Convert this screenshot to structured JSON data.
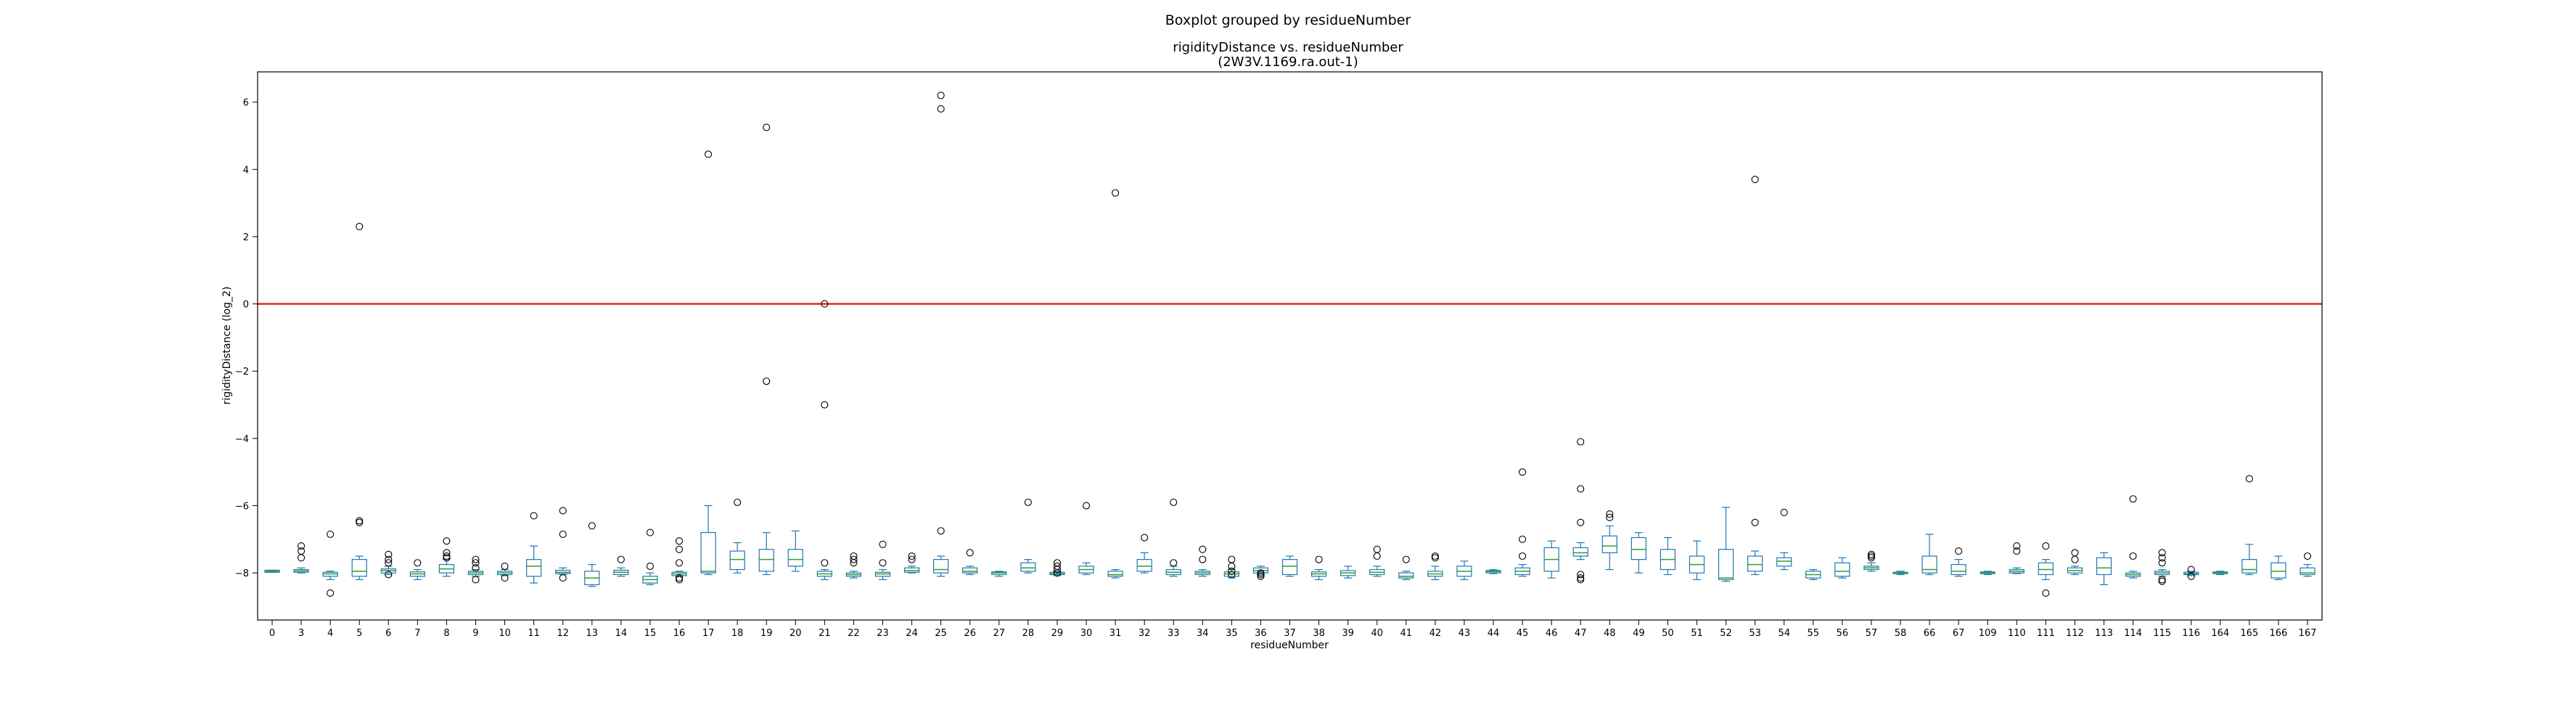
{
  "chart_data": {
    "type": "box",
    "suptitle": "Boxplot grouped by residueNumber",
    "title": "rigidityDistance vs. residueNumber",
    "subtitle": "(2W3V.1169.ra.out-1)",
    "xlabel": "residueNumber",
    "ylabel": "rigidityDistance (log_2)",
    "ylim": [
      -9.4,
      6.9
    ],
    "yticks": [
      -8,
      -6,
      -4,
      -2,
      0,
      2,
      4,
      6
    ],
    "reference_line": {
      "y": 0,
      "color": "#e8351a"
    },
    "box_color": "#1f77b4",
    "median_color": "#2ca02c",
    "categories": [
      "0",
      "3",
      "4",
      "5",
      "6",
      "7",
      "8",
      "9",
      "10",
      "11",
      "12",
      "13",
      "14",
      "15",
      "16",
      "17",
      "18",
      "19",
      "20",
      "21",
      "22",
      "23",
      "24",
      "25",
      "26",
      "27",
      "28",
      "29",
      "30",
      "31",
      "32",
      "33",
      "34",
      "35",
      "36",
      "37",
      "38",
      "39",
      "40",
      "41",
      "42",
      "43",
      "44",
      "45",
      "46",
      "47",
      "48",
      "49",
      "50",
      "51",
      "52",
      "53",
      "54",
      "55",
      "56",
      "57",
      "58",
      "66",
      "67",
      "109",
      "110",
      "111",
      "112",
      "113",
      "114",
      "115",
      "116",
      "164",
      "165",
      "166",
      "167"
    ],
    "boxes": [
      {
        "q1": -7.98,
        "med": -7.95,
        "q3": -7.92,
        "lo": -7.98,
        "hi": -7.92,
        "out": []
      },
      {
        "q1": -7.98,
        "med": -7.94,
        "q3": -7.9,
        "lo": -8.0,
        "hi": -7.85,
        "out": [
          -7.2,
          -7.35,
          -7.55
        ]
      },
      {
        "q1": -8.1,
        "med": -8.03,
        "q3": -7.98,
        "lo": -8.2,
        "hi": -7.95,
        "out": [
          -6.85,
          -8.6
        ]
      },
      {
        "q1": -8.1,
        "med": -7.95,
        "q3": -7.6,
        "lo": -8.2,
        "hi": -7.5,
        "out": [
          2.3,
          -6.45,
          -6.5
        ]
      },
      {
        "q1": -8.0,
        "med": -7.93,
        "q3": -7.88,
        "lo": -8.05,
        "hi": -7.8,
        "out": [
          -7.45,
          -7.6,
          -7.7,
          -8.05
        ]
      },
      {
        "q1": -8.1,
        "med": -8.03,
        "q3": -7.97,
        "lo": -8.2,
        "hi": -7.9,
        "out": [
          -7.7
        ]
      },
      {
        "q1": -8.0,
        "med": -7.88,
        "q3": -7.75,
        "lo": -8.1,
        "hi": -7.6,
        "out": [
          -7.05,
          -7.4,
          -7.5,
          -7.55
        ]
      },
      {
        "q1": -8.05,
        "med": -8.0,
        "q3": -7.95,
        "lo": -8.1,
        "hi": -7.9,
        "out": [
          -7.6,
          -7.7,
          -7.85,
          -8.2
        ]
      },
      {
        "q1": -8.05,
        "med": -8.0,
        "q3": -7.95,
        "lo": -8.08,
        "hi": -7.9,
        "out": [
          -7.8,
          -8.15
        ]
      },
      {
        "q1": -8.1,
        "med": -7.8,
        "q3": -7.6,
        "lo": -8.3,
        "hi": -7.2,
        "out": [
          -6.3
        ]
      },
      {
        "q1": -8.02,
        "med": -7.98,
        "q3": -7.92,
        "lo": -8.05,
        "hi": -7.85,
        "out": [
          -6.15,
          -6.85,
          -8.15
        ]
      },
      {
        "q1": -8.35,
        "med": -8.15,
        "q3": -7.95,
        "lo": -8.4,
        "hi": -7.75,
        "out": [
          -6.6
        ]
      },
      {
        "q1": -8.05,
        "med": -7.98,
        "q3": -7.92,
        "lo": -8.1,
        "hi": -7.85,
        "out": [
          -7.6
        ]
      },
      {
        "q1": -8.3,
        "med": -8.2,
        "q3": -8.1,
        "lo": -8.35,
        "hi": -8.0,
        "out": [
          -6.8,
          -7.8
        ]
      },
      {
        "q1": -8.08,
        "med": -8.03,
        "q3": -7.98,
        "lo": -8.1,
        "hi": -7.95,
        "out": [
          -7.05,
          -7.3,
          -7.7,
          -8.15,
          -8.2
        ]
      },
      {
        "q1": -8.0,
        "med": -7.95,
        "q3": -6.8,
        "lo": -8.05,
        "hi": -6.0,
        "out": [
          4.45
        ]
      },
      {
        "q1": -7.9,
        "med": -7.6,
        "q3": -7.35,
        "lo": -8.0,
        "hi": -7.1,
        "out": [
          -5.9
        ]
      },
      {
        "q1": -7.95,
        "med": -7.6,
        "q3": -7.3,
        "lo": -8.05,
        "hi": -6.8,
        "out": [
          5.25,
          -2.3
        ]
      },
      {
        "q1": -7.8,
        "med": -7.6,
        "q3": -7.3,
        "lo": -7.95,
        "hi": -6.75,
        "out": []
      },
      {
        "q1": -8.1,
        "med": -8.03,
        "q3": -7.95,
        "lo": -8.2,
        "hi": -7.9,
        "out": [
          0.0,
          -3.0,
          -7.7
        ]
      },
      {
        "q1": -8.1,
        "med": -8.05,
        "q3": -8.0,
        "lo": -8.15,
        "hi": -7.95,
        "out": [
          -7.5,
          -7.6,
          -7.7
        ]
      },
      {
        "q1": -8.1,
        "med": -8.03,
        "q3": -7.98,
        "lo": -8.2,
        "hi": -7.9,
        "out": [
          -7.15,
          -7.7
        ]
      },
      {
        "q1": -7.98,
        "med": -7.93,
        "q3": -7.85,
        "lo": -8.0,
        "hi": -7.8,
        "out": [
          -7.5,
          -7.6
        ]
      },
      {
        "q1": -8.0,
        "med": -7.9,
        "q3": -7.6,
        "lo": -8.1,
        "hi": -7.5,
        "out": [
          6.2,
          5.8,
          -6.75
        ]
      },
      {
        "q1": -8.0,
        "med": -7.95,
        "q3": -7.85,
        "lo": -8.05,
        "hi": -7.8,
        "out": [
          -7.4
        ]
      },
      {
        "q1": -8.05,
        "med": -8.0,
        "q3": -7.97,
        "lo": -8.1,
        "hi": -7.95,
        "out": []
      },
      {
        "q1": -7.95,
        "med": -7.85,
        "q3": -7.7,
        "lo": -8.0,
        "hi": -7.6,
        "out": [
          -5.9
        ]
      },
      {
        "q1": -8.05,
        "med": -8.02,
        "q3": -7.98,
        "lo": -8.08,
        "hi": -7.95,
        "out": [
          -7.7,
          -7.8,
          -7.9,
          -8.0
        ]
      },
      {
        "q1": -8.0,
        "med": -7.9,
        "q3": -7.8,
        "lo": -8.05,
        "hi": -7.7,
        "out": [
          -6.0
        ]
      },
      {
        "q1": -8.1,
        "med": -8.05,
        "q3": -7.95,
        "lo": -8.15,
        "hi": -7.9,
        "out": [
          3.3
        ]
      },
      {
        "q1": -7.95,
        "med": -7.8,
        "q3": -7.6,
        "lo": -8.0,
        "hi": -7.4,
        "out": [
          -6.95
        ]
      },
      {
        "q1": -8.05,
        "med": -7.98,
        "q3": -7.9,
        "lo": -8.1,
        "hi": -7.8,
        "out": [
          -5.9,
          -7.7
        ]
      },
      {
        "q1": -8.05,
        "med": -8.0,
        "q3": -7.95,
        "lo": -8.1,
        "hi": -7.9,
        "out": [
          -7.3,
          -7.6
        ]
      },
      {
        "q1": -8.1,
        "med": -8.03,
        "q3": -7.97,
        "lo": -8.15,
        "hi": -7.9,
        "out": [
          -7.6,
          -7.8,
          -7.95,
          -8.05
        ]
      },
      {
        "q1": -8.0,
        "med": -7.93,
        "q3": -7.85,
        "lo": -8.05,
        "hi": -7.8,
        "out": [
          -8.0,
          -8.05,
          -8.1
        ]
      },
      {
        "q1": -8.05,
        "med": -7.8,
        "q3": -7.6,
        "lo": -8.1,
        "hi": -7.5,
        "out": []
      },
      {
        "q1": -8.1,
        "med": -8.03,
        "q3": -7.97,
        "lo": -8.2,
        "hi": -7.9,
        "out": [
          -7.6
        ]
      },
      {
        "q1": -8.08,
        "med": -8.0,
        "q3": -7.93,
        "lo": -8.15,
        "hi": -7.8,
        "out": []
      },
      {
        "q1": -8.05,
        "med": -7.98,
        "q3": -7.9,
        "lo": -8.1,
        "hi": -7.8,
        "out": [
          -7.3,
          -7.5
        ]
      },
      {
        "q1": -8.15,
        "med": -8.1,
        "q3": -8.0,
        "lo": -8.2,
        "hi": -7.95,
        "out": [
          -7.6
        ]
      },
      {
        "q1": -8.1,
        "med": -8.03,
        "q3": -7.95,
        "lo": -8.2,
        "hi": -7.8,
        "out": [
          -7.5,
          -7.55
        ]
      },
      {
        "q1": -8.1,
        "med": -7.95,
        "q3": -7.8,
        "lo": -8.2,
        "hi": -7.65,
        "out": []
      },
      {
        "q1": -8.0,
        "med": -7.96,
        "q3": -7.93,
        "lo": -8.02,
        "hi": -7.9,
        "out": []
      },
      {
        "q1": -8.05,
        "med": -7.95,
        "q3": -7.85,
        "lo": -8.1,
        "hi": -7.75,
        "out": [
          -5.0,
          -7.0,
          -7.5
        ]
      },
      {
        "q1": -7.95,
        "med": -7.6,
        "q3": -7.25,
        "lo": -8.15,
        "hi": -7.05,
        "out": []
      },
      {
        "q1": -7.5,
        "med": -7.4,
        "q3": -7.25,
        "lo": -7.6,
        "hi": -7.1,
        "out": [
          -4.1,
          -5.5,
          -6.5,
          -8.05,
          -8.15,
          -8.2
        ]
      },
      {
        "q1": -7.4,
        "med": -7.2,
        "q3": -6.9,
        "lo": -7.9,
        "hi": -6.6,
        "out": [
          -6.25,
          -6.35
        ]
      },
      {
        "q1": -7.6,
        "med": -7.3,
        "q3": -6.95,
        "lo": -8.0,
        "hi": -6.8,
        "out": []
      },
      {
        "q1": -7.9,
        "med": -7.6,
        "q3": -7.3,
        "lo": -8.05,
        "hi": -6.95,
        "out": []
      },
      {
        "q1": -8.0,
        "med": -7.75,
        "q3": -7.5,
        "lo": -8.2,
        "hi": -7.05,
        "out": []
      },
      {
        "q1": -8.2,
        "med": -8.15,
        "q3": -7.3,
        "lo": -8.25,
        "hi": -6.05,
        "out": []
      },
      {
        "q1": -7.95,
        "med": -7.75,
        "q3": -7.5,
        "lo": -8.05,
        "hi": -7.35,
        "out": [
          3.7,
          -6.5
        ]
      },
      {
        "q1": -7.8,
        "med": -7.65,
        "q3": -7.55,
        "lo": -7.9,
        "hi": -7.4,
        "out": [
          -6.2
        ]
      },
      {
        "q1": -8.15,
        "med": -8.05,
        "q3": -7.95,
        "lo": -8.2,
        "hi": -7.9,
        "out": []
      },
      {
        "q1": -8.1,
        "med": -7.95,
        "q3": -7.7,
        "lo": -8.15,
        "hi": -7.55,
        "out": []
      },
      {
        "q1": -7.9,
        "med": -7.85,
        "q3": -7.8,
        "lo": -7.95,
        "hi": -7.7,
        "out": [
          -7.45,
          -7.5,
          -7.55
        ]
      },
      {
        "q1": -8.02,
        "med": -8.0,
        "q3": -7.98,
        "lo": -8.05,
        "hi": -7.95,
        "out": []
      },
      {
        "q1": -8.0,
        "med": -7.9,
        "q3": -7.5,
        "lo": -8.05,
        "hi": -6.85,
        "out": []
      },
      {
        "q1": -8.05,
        "med": -7.95,
        "q3": -7.75,
        "lo": -8.1,
        "hi": -7.6,
        "out": [
          -7.35
        ]
      },
      {
        "q1": -8.02,
        "med": -8.0,
        "q3": -7.97,
        "lo": -8.05,
        "hi": -7.95,
        "out": []
      },
      {
        "q1": -8.0,
        "med": -7.95,
        "q3": -7.9,
        "lo": -8.02,
        "hi": -7.85,
        "out": [
          -7.2,
          -7.35
        ]
      },
      {
        "q1": -8.05,
        "med": -7.9,
        "q3": -7.7,
        "lo": -8.2,
        "hi": -7.6,
        "out": [
          -7.2,
          -8.6
        ]
      },
      {
        "q1": -8.0,
        "med": -7.93,
        "q3": -7.85,
        "lo": -8.05,
        "hi": -7.8,
        "out": [
          -7.4,
          -7.6
        ]
      },
      {
        "q1": -8.05,
        "med": -7.85,
        "q3": -7.55,
        "lo": -8.35,
        "hi": -7.4,
        "out": []
      },
      {
        "q1": -8.1,
        "med": -8.05,
        "q3": -8.0,
        "lo": -8.15,
        "hi": -7.95,
        "out": [
          -5.8,
          -7.5
        ]
      },
      {
        "q1": -8.05,
        "med": -8.0,
        "q3": -7.95,
        "lo": -8.1,
        "hi": -7.9,
        "out": [
          -7.4,
          -7.55,
          -7.7,
          -8.2,
          -8.25
        ]
      },
      {
        "q1": -8.05,
        "med": -8.02,
        "q3": -7.98,
        "lo": -8.08,
        "hi": -7.95,
        "out": [
          -7.9,
          -8.1
        ]
      },
      {
        "q1": -8.02,
        "med": -8.0,
        "q3": -7.97,
        "lo": -8.05,
        "hi": -7.95,
        "out": []
      },
      {
        "q1": -8.0,
        "med": -7.9,
        "q3": -7.6,
        "lo": -8.05,
        "hi": -7.15,
        "out": [
          -5.2
        ]
      },
      {
        "q1": -8.15,
        "med": -7.95,
        "q3": -7.7,
        "lo": -8.2,
        "hi": -7.5,
        "out": []
      },
      {
        "q1": -8.05,
        "med": -8.0,
        "q3": -7.85,
        "lo": -8.1,
        "hi": -7.75,
        "out": [
          -7.5
        ]
      }
    ]
  }
}
